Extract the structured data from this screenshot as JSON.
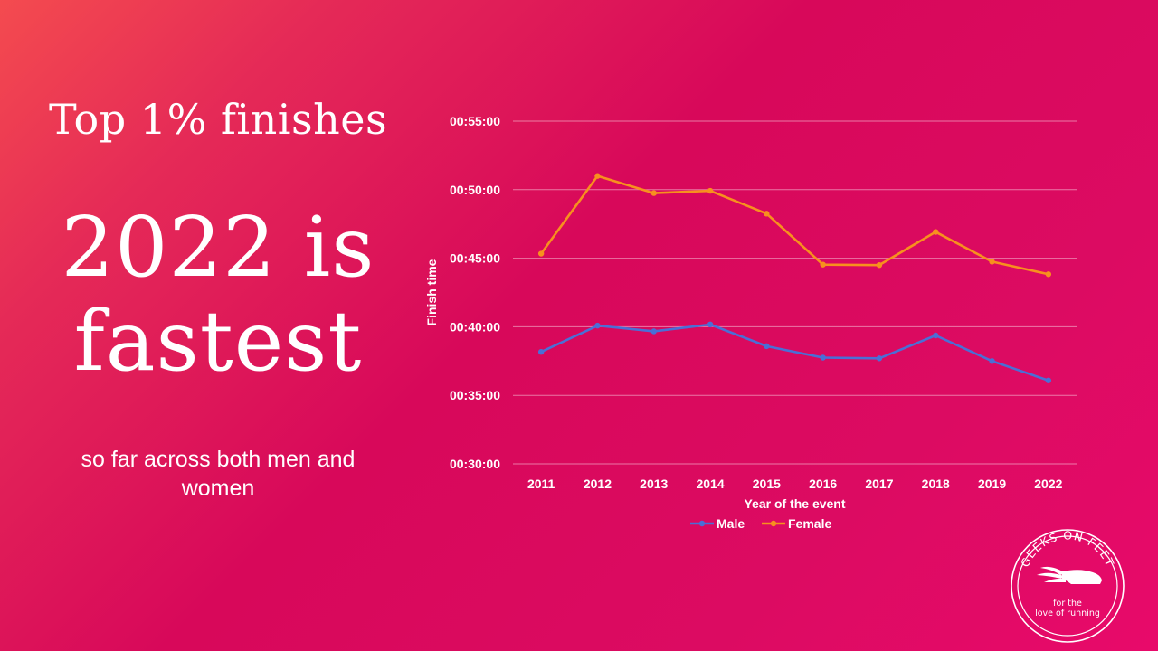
{
  "slide": {
    "heading": "Top 1% finishes",
    "headline_line1": "2022 is",
    "headline_line2": "fastest",
    "subtext": "so far across both men and women"
  },
  "logo": {
    "arc_text": "GEEKS ON FEET",
    "tagline_line1": "for the",
    "tagline_line2": "love of running",
    "icon": "winged-shoe-icon"
  },
  "colors": {
    "male": "#4a6fd6",
    "female": "#f7901e",
    "grid": "rgba(255,255,255,0.45)",
    "text": "#ffffff"
  },
  "chart_data": {
    "type": "line",
    "xlabel": "Year of the event",
    "ylabel": "Finish time",
    "categories": [
      "2011",
      "2012",
      "2013",
      "2014",
      "2015",
      "2016",
      "2017",
      "2018",
      "2019",
      "2022"
    ],
    "y_ticks": [
      "00:30:00",
      "00:35:00",
      "00:40:00",
      "00:45:00",
      "00:50:00",
      "00:55:00"
    ],
    "ylim": [
      "00:30:00",
      "00:55:00"
    ],
    "grid": true,
    "legend_position": "bottom",
    "series": [
      {
        "name": "Male",
        "values": [
          "00:38:10",
          "00:40:05",
          "00:39:40",
          "00:40:10",
          "00:38:35",
          "00:37:45",
          "00:37:42",
          "00:39:22",
          "00:37:30",
          "00:36:05"
        ]
      },
      {
        "name": "Female",
        "values": [
          "00:45:20",
          "00:51:00",
          "00:49:45",
          "00:49:55",
          "00:48:15",
          "00:44:32",
          "00:44:30",
          "00:46:55",
          "00:44:45",
          "00:43:50"
        ]
      }
    ]
  }
}
